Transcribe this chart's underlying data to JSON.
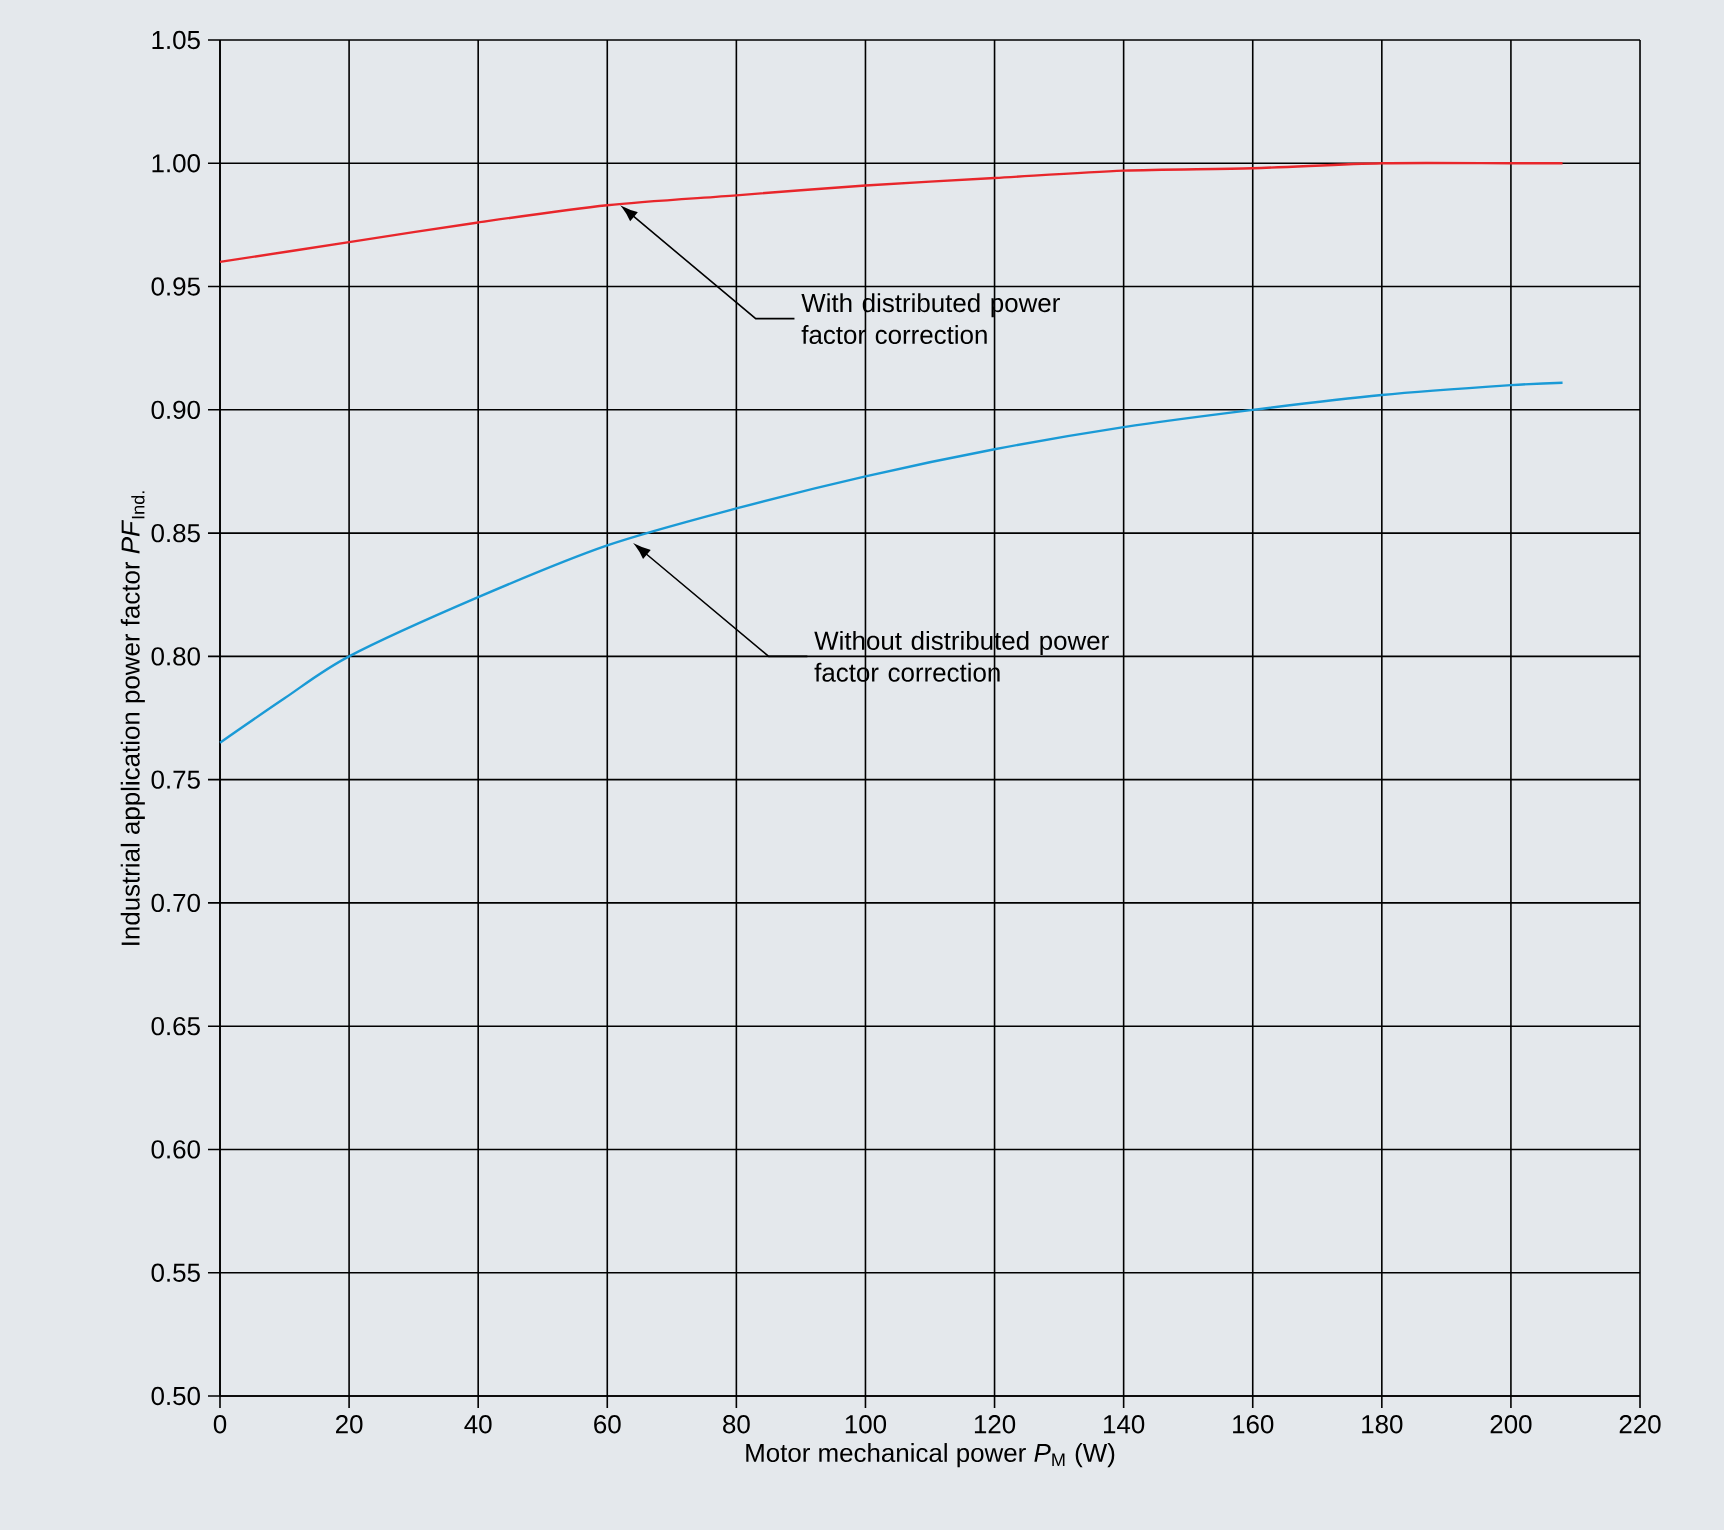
{
  "chart_data": {
    "type": "line",
    "xlabel": "Motor mechanical power *P*$_{M}$ (W)",
    "ylabel": "Industrial application power factor *PF*$_{Ind.}$",
    "xlim": [
      0,
      220
    ],
    "xticks": [
      0,
      20,
      40,
      60,
      80,
      100,
      120,
      140,
      160,
      180,
      200,
      220
    ],
    "ylim": [
      0.5,
      1.05
    ],
    "yticks": [
      {
        "value": 0.5,
        "label": "0.50"
      },
      {
        "value": 0.55,
        "label": "0.55"
      },
      {
        "value": 0.6,
        "label": "0.60"
      },
      {
        "value": 0.65,
        "label": "0.65"
      },
      {
        "value": 0.7,
        "label": "0.70"
      },
      {
        "value": 0.75,
        "label": "0.75"
      },
      {
        "value": 0.8,
        "label": "0.80"
      },
      {
        "value": 0.85,
        "label": "0.85"
      },
      {
        "value": 0.9,
        "label": "0.90"
      },
      {
        "value": 0.95,
        "label": "0.95"
      },
      {
        "value": 1.0,
        "label": "1.00"
      },
      {
        "value": 1.05,
        "label": "1.05"
      }
    ],
    "grid": true,
    "marker": "none",
    "line_style": "solid",
    "series": [
      {
        "color": "#e8262b",
        "x": [
          0,
          20,
          40,
          60,
          80,
          100,
          120,
          140,
          160,
          180,
          200,
          208
        ],
        "values": [
          0.96,
          0.968,
          0.976,
          0.983,
          0.987,
          0.991,
          0.994,
          0.997,
          0.998,
          1.0,
          1.0,
          1.0
        ]
      },
      {
        "color": "#1a9ad6",
        "x": [
          0,
          10,
          20,
          40,
          60,
          80,
          100,
          120,
          140,
          160,
          180,
          200,
          208
        ],
        "values": [
          0.765,
          0.783,
          0.8,
          0.824,
          0.845,
          0.86,
          0.873,
          0.884,
          0.893,
          0.9,
          0.906,
          0.91,
          0.911
        ]
      }
    ],
    "annotations": [
      {
        "text": "With distributed power factor correction",
        "x": 62,
        "y": 0.983
      },
      {
        "text": "Without distributed power factor correction",
        "x": 64,
        "y": 0.846
      }
    ]
  }
}
